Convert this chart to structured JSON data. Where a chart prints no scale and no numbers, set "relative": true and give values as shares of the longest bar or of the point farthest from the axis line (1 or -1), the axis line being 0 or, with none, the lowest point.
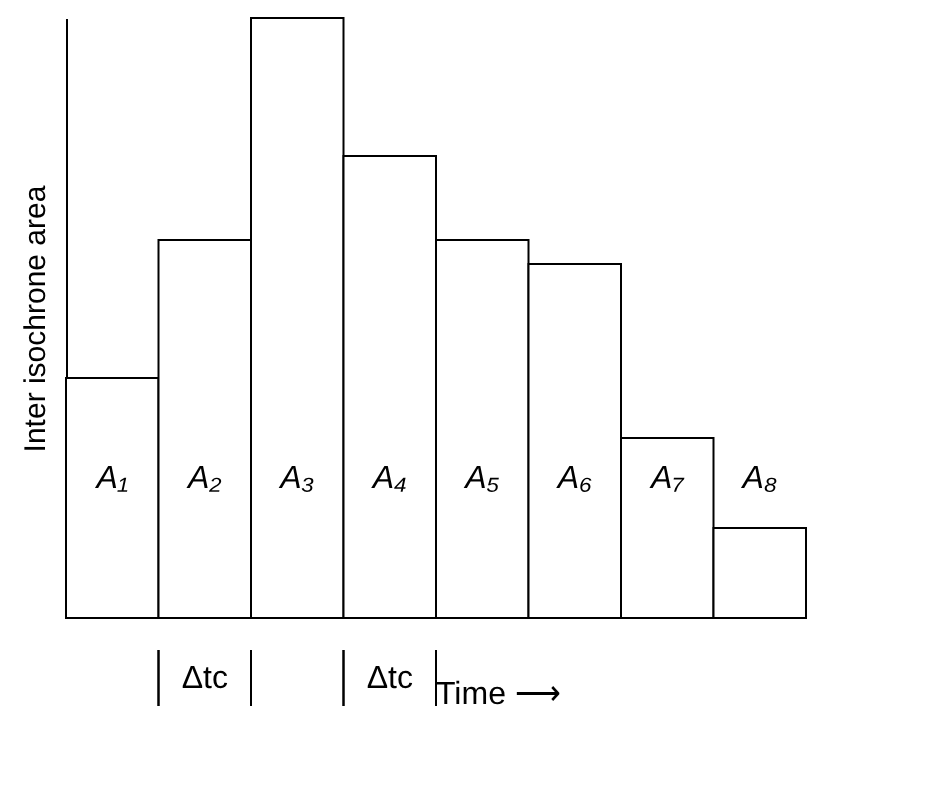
{
  "chart_data": {
    "type": "bar",
    "relative": true,
    "xlabel": "Time ⟶",
    "ylabel": "Inter isochrone area",
    "categories": [
      "A₁",
      "A₂",
      "A₃",
      "A₄",
      "A₅",
      "A₆",
      "A₇",
      "A₈"
    ],
    "values": [
      0.4,
      0.63,
      1,
      0.77,
      0.63,
      0.59,
      0.3,
      0.15
    ],
    "color": "#ffffff",
    "annotations": [
      "Δtc",
      "Δtc"
    ]
  }
}
